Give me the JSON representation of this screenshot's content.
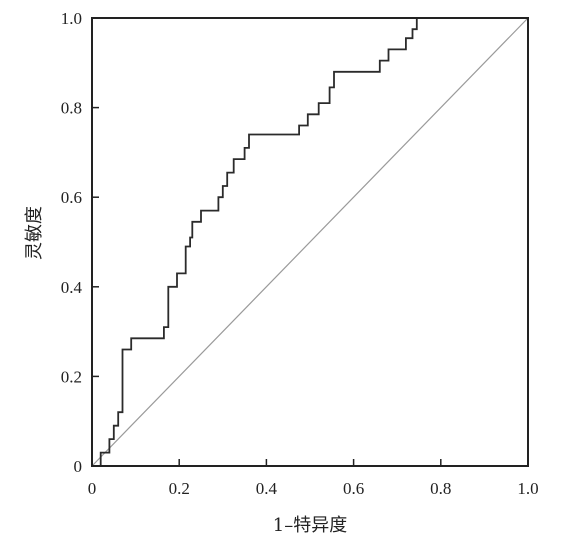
{
  "chart_data": {
    "type": "line",
    "title": "",
    "xlabel": "1–特异度",
    "ylabel": "灵敏度",
    "xlim": [
      0,
      1
    ],
    "ylim": [
      0,
      1
    ],
    "x_ticks": [
      "0",
      "0.2",
      "0.4",
      "0.6",
      "0.8",
      "1.0"
    ],
    "y_ticks": [
      "0",
      "0.2",
      "0.4",
      "0.6",
      "0.8",
      "1.0"
    ],
    "grid": false,
    "legend": "none",
    "series": [
      {
        "points": [
          [
            0,
            0
          ],
          [
            0.02,
            0
          ],
          [
            0.02,
            0.03
          ],
          [
            0.04,
            0.03
          ],
          [
            0.04,
            0.06
          ],
          [
            0.05,
            0.06
          ],
          [
            0.05,
            0.09
          ],
          [
            0.06,
            0.09
          ],
          [
            0.06,
            0.12
          ],
          [
            0.07,
            0.12
          ],
          [
            0.07,
            0.26
          ],
          [
            0.09,
            0.26
          ],
          [
            0.09,
            0.285
          ],
          [
            0.165,
            0.285
          ],
          [
            0.165,
            0.31
          ],
          [
            0.175,
            0.31
          ],
          [
            0.175,
            0.4
          ],
          [
            0.195,
            0.4
          ],
          [
            0.195,
            0.43
          ],
          [
            0.215,
            0.43
          ],
          [
            0.215,
            0.49
          ],
          [
            0.225,
            0.49
          ],
          [
            0.225,
            0.51
          ],
          [
            0.23,
            0.51
          ],
          [
            0.23,
            0.545
          ],
          [
            0.25,
            0.545
          ],
          [
            0.25,
            0.57
          ],
          [
            0.29,
            0.57
          ],
          [
            0.29,
            0.6
          ],
          [
            0.3,
            0.6
          ],
          [
            0.3,
            0.625
          ],
          [
            0.31,
            0.625
          ],
          [
            0.31,
            0.655
          ],
          [
            0.325,
            0.655
          ],
          [
            0.325,
            0.685
          ],
          [
            0.35,
            0.685
          ],
          [
            0.35,
            0.71
          ],
          [
            0.36,
            0.71
          ],
          [
            0.36,
            0.74
          ],
          [
            0.475,
            0.74
          ],
          [
            0.475,
            0.76
          ],
          [
            0.495,
            0.76
          ],
          [
            0.495,
            0.785
          ],
          [
            0.52,
            0.785
          ],
          [
            0.52,
            0.81
          ],
          [
            0.545,
            0.81
          ],
          [
            0.545,
            0.845
          ],
          [
            0.555,
            0.845
          ],
          [
            0.555,
            0.88
          ],
          [
            0.66,
            0.88
          ],
          [
            0.66,
            0.905
          ],
          [
            0.68,
            0.905
          ],
          [
            0.68,
            0.93
          ],
          [
            0.72,
            0.93
          ],
          [
            0.72,
            0.955
          ],
          [
            0.735,
            0.955
          ],
          [
            0.735,
            0.975
          ],
          [
            0.745,
            0.975
          ],
          [
            0.745,
            1.0
          ],
          [
            1.0,
            1.0
          ]
        ]
      },
      {
        "points": [
          [
            0,
            0
          ],
          [
            1,
            1
          ]
        ]
      }
    ]
  }
}
